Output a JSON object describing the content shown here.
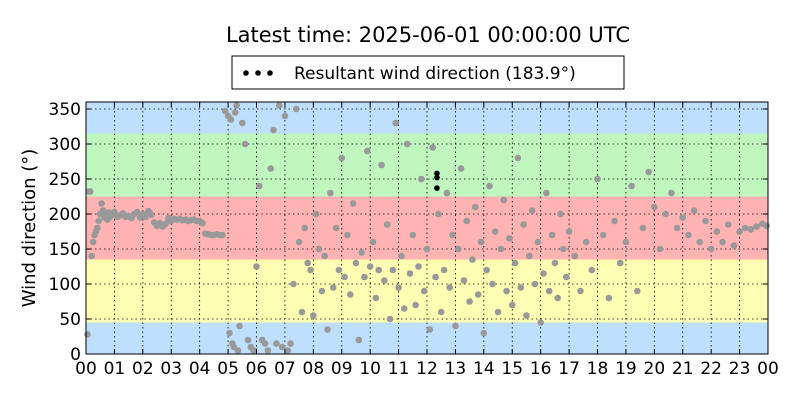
{
  "chart_data": {
    "type": "scatter",
    "title": "Latest time: 2025-06-01 00:00:00 UTC",
    "ylabel": "Wind direction (°)",
    "xlabel": "",
    "x_range_hours": [
      0,
      24
    ],
    "ylim": [
      0,
      360
    ],
    "x_tick_labels": [
      "00",
      "01",
      "02",
      "03",
      "04",
      "05",
      "06",
      "07",
      "08",
      "09",
      "10",
      "11",
      "12",
      "13",
      "14",
      "15",
      "16",
      "17",
      "18",
      "19",
      "20",
      "21",
      "22",
      "23",
      "00"
    ],
    "y_ticks": [
      0,
      50,
      100,
      150,
      200,
      250,
      300,
      350
    ],
    "grid": true,
    "legend": {
      "placement": "top-center",
      "entries": [
        "Resultant wind direction (183.9°)"
      ]
    },
    "bands": [
      {
        "from": 0,
        "to": 45,
        "color": "#bfdfff"
      },
      {
        "from": 45,
        "to": 135,
        "color": "#ffffb3"
      },
      {
        "from": 135,
        "to": 225,
        "color": "#ffb3b3"
      },
      {
        "from": 225,
        "to": 315,
        "color": "#bff7bf"
      },
      {
        "from": 315,
        "to": 360,
        "color": "#bfdfff"
      }
    ],
    "point_colors": {
      "observations": "#999999",
      "resultant": "#000000"
    },
    "series": [
      {
        "role": "observations",
        "points": [
          [
            0.05,
            28
          ],
          [
            0.1,
            232
          ],
          [
            0.15,
            232
          ],
          [
            0.2,
            140
          ],
          [
            0.25,
            160
          ],
          [
            0.3,
            170
          ],
          [
            0.35,
            175
          ],
          [
            0.4,
            180
          ],
          [
            0.45,
            190
          ],
          [
            0.5,
            200
          ],
          [
            0.55,
            215
          ],
          [
            0.6,
            205
          ],
          [
            0.65,
            195
          ],
          [
            0.7,
            198
          ],
          [
            0.75,
            192
          ],
          [
            0.8,
            202
          ],
          [
            0.85,
            196
          ],
          [
            0.9,
            200
          ],
          [
            0.95,
            199
          ],
          [
            1.0,
            203
          ],
          [
            1.1,
            196
          ],
          [
            1.2,
            198
          ],
          [
            1.3,
            201
          ],
          [
            1.4,
            196
          ],
          [
            1.5,
            197
          ],
          [
            1.6,
            194
          ],
          [
            1.7,
            200
          ],
          [
            1.8,
            203
          ],
          [
            1.9,
            195
          ],
          [
            2.0,
            200
          ],
          [
            2.1,
            196
          ],
          [
            2.2,
            204
          ],
          [
            2.3,
            199
          ],
          [
            2.4,
            188
          ],
          [
            2.5,
            183
          ],
          [
            2.6,
            187
          ],
          [
            2.7,
            182
          ],
          [
            2.8,
            186
          ],
          [
            2.9,
            194
          ],
          [
            3.0,
            190
          ],
          [
            3.1,
            193
          ],
          [
            3.2,
            192
          ],
          [
            3.3,
            193
          ],
          [
            3.4,
            191
          ],
          [
            3.5,
            192
          ],
          [
            3.6,
            190
          ],
          [
            3.7,
            191
          ],
          [
            3.8,
            192
          ],
          [
            3.9,
            190
          ],
          [
            4.0,
            190
          ],
          [
            4.1,
            187
          ],
          [
            4.2,
            172
          ],
          [
            4.3,
            171
          ],
          [
            4.4,
            170
          ],
          [
            4.5,
            170
          ],
          [
            4.6,
            171
          ],
          [
            4.7,
            170
          ],
          [
            4.8,
            170
          ],
          [
            4.9,
            347
          ],
          [
            5.0,
            340
          ],
          [
            5.05,
            30
          ],
          [
            5.1,
            335
          ],
          [
            5.15,
            15
          ],
          [
            5.2,
            10
          ],
          [
            5.25,
            345
          ],
          [
            5.3,
            355
          ],
          [
            5.35,
            5
          ],
          [
            5.4,
            40
          ],
          [
            5.5,
            330
          ],
          [
            5.6,
            300
          ],
          [
            5.7,
            20
          ],
          [
            5.8,
            10
          ],
          [
            5.9,
            5
          ],
          [
            6.0,
            125
          ],
          [
            6.1,
            240
          ],
          [
            6.2,
            20
          ],
          [
            6.3,
            15
          ],
          [
            6.4,
            5
          ],
          [
            6.5,
            265
          ],
          [
            6.6,
            320
          ],
          [
            6.7,
            15
          ],
          [
            6.8,
            355
          ],
          [
            6.9,
            10
          ],
          [
            7.0,
            340
          ],
          [
            7.1,
            5
          ],
          [
            7.2,
            15
          ],
          [
            7.3,
            100
          ],
          [
            7.4,
            350
          ],
          [
            7.5,
            160
          ],
          [
            7.6,
            60
          ],
          [
            7.7,
            180
          ],
          [
            7.8,
            130
          ],
          [
            7.9,
            120
          ],
          [
            8.0,
            55
          ],
          [
            8.1,
            200
          ],
          [
            8.2,
            150
          ],
          [
            8.3,
            90
          ],
          [
            8.4,
            140
          ],
          [
            8.5,
            35
          ],
          [
            8.6,
            230
          ],
          [
            8.7,
            95
          ],
          [
            8.8,
            180
          ],
          [
            8.9,
            120
          ],
          [
            9.0,
            280
          ],
          [
            9.1,
            110
          ],
          [
            9.2,
            170
          ],
          [
            9.3,
            85
          ],
          [
            9.4,
            215
          ],
          [
            9.5,
            130
          ],
          [
            9.6,
            20
          ],
          [
            9.7,
            145
          ],
          [
            9.8,
            110
          ],
          [
            9.9,
            290
          ],
          [
            10.0,
            125
          ],
          [
            10.1,
            160
          ],
          [
            10.2,
            80
          ],
          [
            10.3,
            120
          ],
          [
            10.4,
            270
          ],
          [
            10.5,
            105
          ],
          [
            10.6,
            185
          ],
          [
            10.7,
            50
          ],
          [
            10.8,
            120
          ],
          [
            10.9,
            330
          ],
          [
            11.0,
            95
          ],
          [
            11.1,
            140
          ],
          [
            11.2,
            65
          ],
          [
            11.3,
            300
          ],
          [
            11.4,
            115
          ],
          [
            11.5,
            170
          ],
          [
            11.6,
            70
          ],
          [
            11.7,
            125
          ],
          [
            11.8,
            250
          ],
          [
            11.9,
            90
          ],
          [
            12.0,
            150
          ],
          [
            12.1,
            35
          ],
          [
            12.2,
            295
          ],
          [
            12.3,
            110
          ],
          [
            12.4,
            200
          ],
          [
            12.5,
            60
          ],
          [
            12.6,
            120
          ],
          [
            12.7,
            230
          ],
          [
            12.8,
            95
          ],
          [
            12.9,
            170
          ],
          [
            13.0,
            40
          ],
          [
            13.1,
            150
          ],
          [
            13.2,
            265
          ],
          [
            13.3,
            105
          ],
          [
            13.4,
            190
          ],
          [
            13.5,
            75
          ],
          [
            13.6,
            135
          ],
          [
            13.7,
            210
          ],
          [
            13.8,
            85
          ],
          [
            13.9,
            160
          ],
          [
            14.0,
            30
          ],
          [
            14.1,
            120
          ],
          [
            14.2,
            240
          ],
          [
            14.3,
            100
          ],
          [
            14.4,
            175
          ],
          [
            14.5,
            60
          ],
          [
            14.6,
            150
          ],
          [
            14.7,
            220
          ],
          [
            14.8,
            90
          ],
          [
            14.9,
            165
          ],
          [
            15.0,
            70
          ],
          [
            15.1,
            130
          ],
          [
            15.2,
            280
          ],
          [
            15.3,
            95
          ],
          [
            15.4,
            185
          ],
          [
            15.5,
            55
          ],
          [
            15.6,
            140
          ],
          [
            15.7,
            205
          ],
          [
            15.8,
            100
          ],
          [
            15.9,
            160
          ],
          [
            16.0,
            45
          ],
          [
            16.1,
            115
          ],
          [
            16.2,
            230
          ],
          [
            16.3,
            90
          ],
          [
            16.4,
            170
          ],
          [
            16.5,
            130
          ],
          [
            16.6,
            80
          ],
          [
            16.7,
            200
          ],
          [
            16.8,
            150
          ],
          [
            16.9,
            110
          ],
          [
            17.0,
            175
          ],
          [
            17.2,
            140
          ],
          [
            17.4,
            90
          ],
          [
            17.6,
            160
          ],
          [
            17.8,
            120
          ],
          [
            18.0,
            250
          ],
          [
            18.2,
            170
          ],
          [
            18.4,
            80
          ],
          [
            18.6,
            190
          ],
          [
            18.8,
            130
          ],
          [
            19.0,
            160
          ],
          [
            19.2,
            240
          ],
          [
            19.4,
            90
          ],
          [
            19.6,
            180
          ],
          [
            19.8,
            260
          ],
          [
            20.0,
            210
          ],
          [
            20.2,
            150
          ],
          [
            20.4,
            200
          ],
          [
            20.6,
            230
          ],
          [
            20.8,
            180
          ],
          [
            21.0,
            195
          ],
          [
            21.2,
            170
          ],
          [
            21.4,
            205
          ],
          [
            21.6,
            160
          ],
          [
            21.8,
            190
          ],
          [
            22.0,
            150
          ],
          [
            22.2,
            175
          ],
          [
            22.4,
            160
          ],
          [
            22.6,
            185
          ],
          [
            22.8,
            155
          ],
          [
            23.0,
            175
          ],
          [
            23.2,
            180
          ],
          [
            23.4,
            178
          ],
          [
            23.6,
            182
          ],
          [
            23.8,
            186
          ],
          [
            23.95,
            183
          ]
        ]
      },
      {
        "role": "resultant",
        "name": "Resultant wind direction (183.9°)",
        "points": [
          [
            12.35,
            258
          ],
          [
            12.35,
            252
          ],
          [
            12.35,
            237
          ]
        ]
      }
    ]
  }
}
